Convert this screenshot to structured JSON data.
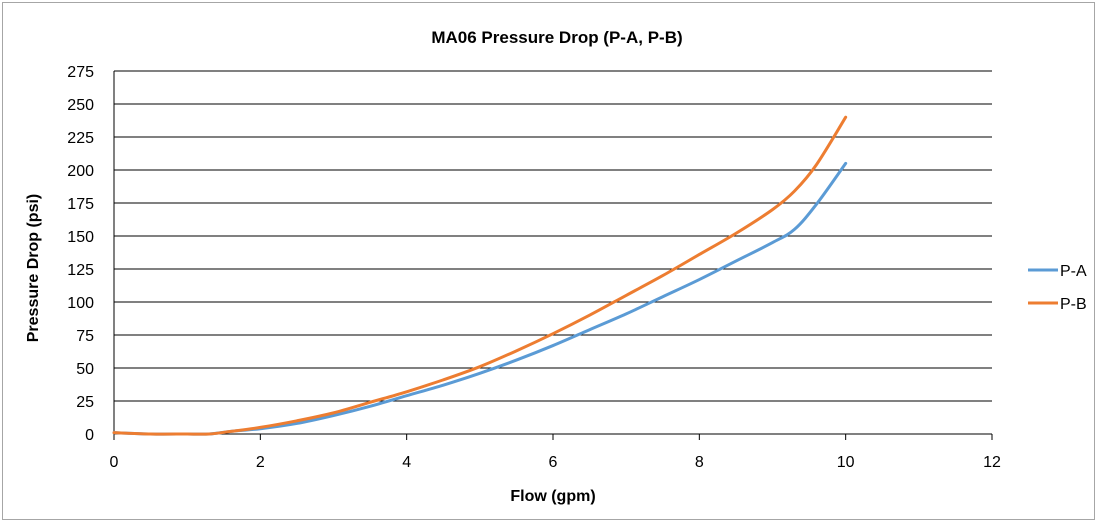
{
  "chart_data": {
    "type": "line",
    "title": "MA06 Pressure Drop (P-A, P-B)",
    "xlabel": "Flow (gpm)",
    "ylabel": "Pressure Drop (psi)",
    "xlim": [
      0,
      12
    ],
    "ylim": [
      0,
      275
    ],
    "x_ticks": [
      "0",
      "2",
      "4",
      "6",
      "8",
      "10",
      "12"
    ],
    "y_ticks": [
      "0",
      "25",
      "50",
      "75",
      "100",
      "125",
      "150",
      "175",
      "200",
      "225",
      "250",
      "275"
    ],
    "grid": "horizontal",
    "legend_position": "right",
    "series": [
      {
        "name": "P-A",
        "color": "#5b9bd5",
        "x": [
          0,
          0.5,
          1.0,
          1.3,
          1.6,
          2.0,
          2.5,
          3.0,
          3.5,
          4.0,
          4.5,
          5.0,
          5.5,
          6.0,
          6.5,
          7.0,
          7.5,
          8.0,
          8.5,
          9.0,
          9.3,
          9.6,
          10.0
        ],
        "y": [
          1,
          0,
          0,
          0,
          2,
          4,
          8,
          14,
          21,
          29,
          37,
          46,
          56,
          67,
          79,
          91,
          104,
          117,
          131,
          145,
          155,
          174,
          205
        ]
      },
      {
        "name": "P-B",
        "color": "#ed7d31",
        "x": [
          0,
          0.5,
          1.0,
          1.3,
          1.6,
          2.0,
          2.5,
          3.0,
          3.5,
          4.0,
          4.5,
          5.0,
          5.5,
          6.0,
          6.5,
          7.0,
          7.5,
          8.0,
          8.5,
          9.0,
          9.3,
          9.6,
          10.0
        ],
        "y": [
          1,
          0,
          0,
          0,
          2,
          5,
          10,
          16,
          24,
          32,
          41,
          51,
          63,
          76,
          90,
          105,
          120,
          136,
          152,
          170,
          184,
          204,
          240
        ]
      }
    ]
  }
}
